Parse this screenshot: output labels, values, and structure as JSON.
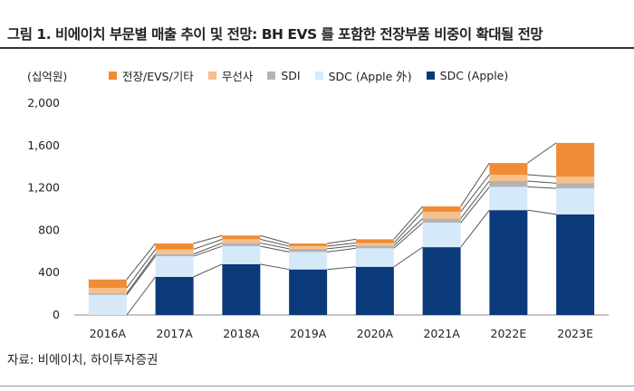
{
  "header": {
    "title": "그림 1. 비에이치 부문별 매출 추이 및 전망: BH EVS 를 포함한 전장부품 비중이 확대될 전망",
    "unit": "(십억원)"
  },
  "footer": {
    "source": "자료: 비에이치, 하이투자증권"
  },
  "chart_data": {
    "type": "bar",
    "stacked": true,
    "categories": [
      "2016A",
      "2017A",
      "2018A",
      "2019A",
      "2020A",
      "2021A",
      "2022E",
      "2023E"
    ],
    "ylim": [
      0,
      2000
    ],
    "yticks": [
      0,
      400,
      800,
      1200,
      1600,
      2000
    ],
    "ytick_labels": [
      "0",
      "400",
      "800",
      "1,200",
      "1,600",
      "2,000"
    ],
    "legend_placement": "top",
    "connector_lines": true,
    "series": [
      {
        "name": "SDC (Apple)",
        "color": "#0b3a7a",
        "values": [
          0,
          360,
          480,
          430,
          455,
          640,
          990,
          950
        ]
      },
      {
        "name": "SDC (Apple 外)",
        "color": "#d6e9f8",
        "values": [
          190,
          195,
          170,
          165,
          175,
          230,
          220,
          245
        ]
      },
      {
        "name": "SDI",
        "color": "#b3b3b3",
        "values": [
          15,
          20,
          30,
          30,
          25,
          40,
          55,
          50
        ]
      },
      {
        "name": "무선사",
        "color": "#f7c08b",
        "values": [
          50,
          45,
          35,
          25,
          25,
          65,
          60,
          60
        ]
      },
      {
        "name": "전장/EVS/기타",
        "color": "#f08c35",
        "values": [
          80,
          55,
          35,
          25,
          35,
          50,
          110,
          320
        ]
      }
    ],
    "legend_order": [
      "전장/EVS/기타",
      "무선사",
      "SDI",
      "SDC (Apple 外)",
      "SDC (Apple)"
    ]
  }
}
